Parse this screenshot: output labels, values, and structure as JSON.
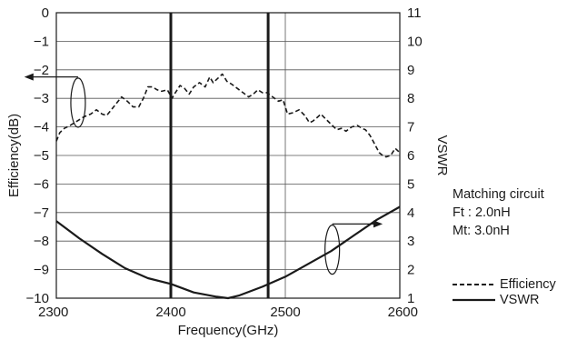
{
  "chart_data": {
    "type": "line",
    "title": "",
    "xlabel": "Frequency(GHz)",
    "ylabel": "Efficiency(dB)",
    "y2label": "VSWR",
    "xlim": [
      2300,
      2600
    ],
    "ylim": [
      -10,
      0
    ],
    "y2lim": [
      1,
      11
    ],
    "xticks": [
      "2300",
      "2400",
      "2500",
      "2600"
    ],
    "yticks": [
      "0",
      "−1",
      "−2",
      "−3",
      "−4",
      "−5",
      "−6",
      "−7",
      "−8",
      "−9",
      "−10"
    ],
    "y2ticks": [
      "11",
      "10",
      "9",
      "8",
      "7",
      "6",
      "5",
      "4",
      "3",
      "2",
      "1"
    ],
    "grid": true,
    "band_markers": [
      2400,
      2485
    ],
    "series": [
      {
        "name": "Efficiency",
        "axis": "left",
        "style": "dashed",
        "x": [
          2300,
          2303,
          2307,
          2312,
          2318,
          2324,
          2330,
          2335,
          2340,
          2344,
          2348,
          2352,
          2357,
          2362,
          2367,
          2372,
          2376,
          2380,
          2384,
          2388,
          2392,
          2397,
          2401,
          2404,
          2408,
          2412,
          2416,
          2420,
          2425,
          2430,
          2434,
          2437,
          2441,
          2445,
          2449,
          2453,
          2458,
          2463,
          2468,
          2472,
          2476,
          2480,
          2484,
          2489,
          2494,
          2498,
          2502,
          2507,
          2512,
          2517,
          2521,
          2524,
          2527,
          2531,
          2536,
          2541,
          2545,
          2549,
          2553,
          2558,
          2563,
          2567,
          2570,
          2574,
          2578,
          2582,
          2585,
          2588,
          2592,
          2596,
          2600
        ],
        "values": [
          -4.5,
          -4.2,
          -4.05,
          -3.95,
          -3.8,
          -3.65,
          -3.55,
          -3.4,
          -3.55,
          -3.6,
          -3.4,
          -3.2,
          -2.95,
          -3.1,
          -3.3,
          -3.3,
          -3.0,
          -2.6,
          -2.6,
          -2.7,
          -2.75,
          -2.7,
          -3.0,
          -2.8,
          -2.55,
          -2.65,
          -2.85,
          -2.6,
          -2.45,
          -2.6,
          -2.25,
          -2.45,
          -2.3,
          -2.15,
          -2.4,
          -2.5,
          -2.65,
          -2.8,
          -2.95,
          -2.85,
          -2.7,
          -2.8,
          -2.8,
          -2.95,
          -3.1,
          -3.05,
          -3.55,
          -3.5,
          -3.4,
          -3.6,
          -3.85,
          -3.8,
          -3.7,
          -3.55,
          -3.75,
          -3.95,
          -4.1,
          -4.05,
          -4.15,
          -4.0,
          -3.95,
          -4.05,
          -4.1,
          -4.3,
          -4.6,
          -4.9,
          -5.0,
          -5.05,
          -5.0,
          -4.75,
          -4.9
        ]
      },
      {
        "name": "VSWR",
        "axis": "right",
        "style": "solid",
        "x": [
          2300,
          2320,
          2340,
          2360,
          2380,
          2400,
          2420,
          2440,
          2450,
          2460,
          2480,
          2500,
          2520,
          2540,
          2560,
          2580,
          2600
        ],
        "values": [
          3.7,
          3.1,
          2.55,
          2.05,
          1.7,
          1.5,
          1.2,
          1.05,
          1.0,
          1.1,
          1.4,
          1.75,
          2.2,
          2.65,
          3.2,
          3.75,
          4.2
        ]
      }
    ],
    "legend_position": "bottom-right"
  },
  "notes": {
    "line1": "Matching circuit",
    "line2": "Ft : 2.0nH",
    "line3": "Mt: 3.0nH"
  }
}
